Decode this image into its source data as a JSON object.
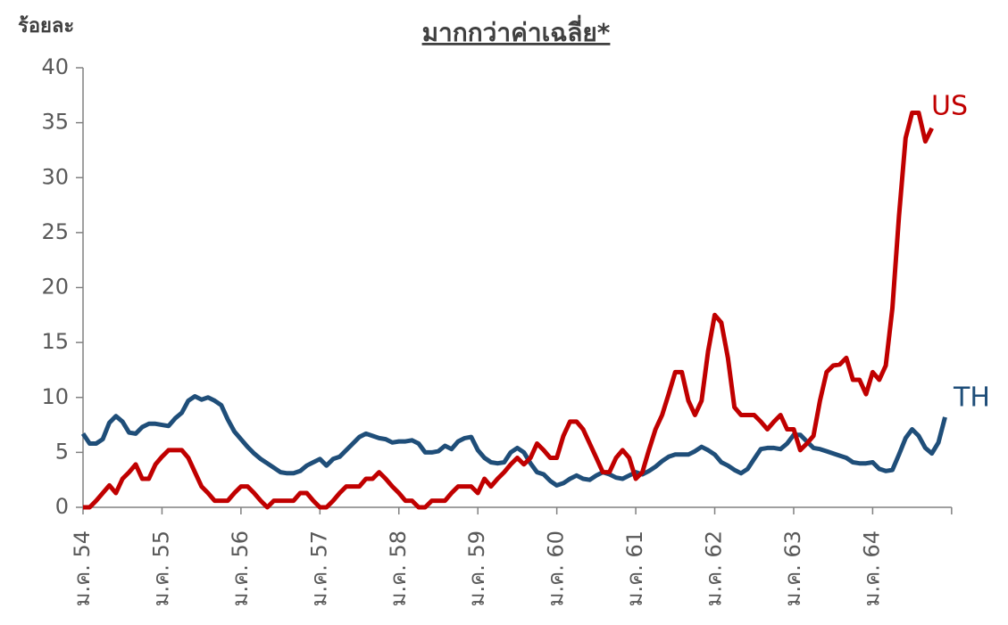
{
  "chart_data": {
    "type": "line",
    "title": "มากกว่าค่าเฉลี่ย*",
    "y_label": "ร้อยละ",
    "categories": [
      "ม.ค. 54",
      null,
      null,
      null,
      null,
      null,
      null,
      null,
      null,
      null,
      null,
      null,
      "ม.ค. 55",
      null,
      null,
      null,
      null,
      null,
      null,
      null,
      null,
      null,
      null,
      null,
      "ม.ค. 56",
      null,
      null,
      null,
      null,
      null,
      null,
      null,
      null,
      null,
      null,
      null,
      "ม.ค. 57",
      null,
      null,
      null,
      null,
      null,
      null,
      null,
      null,
      null,
      null,
      null,
      "ม.ค. 58",
      null,
      null,
      null,
      null,
      null,
      null,
      null,
      null,
      null,
      null,
      null,
      "ม.ค. 59",
      null,
      null,
      null,
      null,
      null,
      null,
      null,
      null,
      null,
      null,
      null,
      "ม.ค. 60",
      null,
      null,
      null,
      null,
      null,
      null,
      null,
      null,
      null,
      null,
      null,
      "ม.ค. 61",
      null,
      null,
      null,
      null,
      null,
      null,
      null,
      null,
      null,
      null,
      null,
      "ม.ค. 62",
      null,
      null,
      null,
      null,
      null,
      null,
      null,
      null,
      null,
      null,
      null,
      "ม.ค. 63",
      null,
      null,
      null,
      null,
      null,
      null,
      null,
      null,
      null,
      null,
      null,
      "ม.ค. 64",
      null,
      null,
      null,
      null,
      null,
      null,
      null,
      null,
      null,
      null,
      null
    ],
    "series": [
      {
        "name": "TH",
        "color": "#1f4e79",
        "values": [
          6.7,
          5.8,
          5.8,
          6.2,
          7.7,
          8.3,
          7.8,
          6.8,
          6.7,
          7.3,
          7.6,
          7.6,
          7.5,
          7.4,
          8.1,
          8.6,
          9.7,
          10.1,
          9.8,
          10.0,
          9.7,
          9.3,
          8.0,
          6.9,
          6.2,
          5.5,
          4.9,
          4.4,
          4.0,
          3.6,
          3.2,
          3.1,
          3.1,
          3.3,
          3.8,
          4.1,
          4.4,
          3.8,
          4.4,
          4.6,
          5.2,
          5.8,
          6.4,
          6.7,
          6.5,
          6.3,
          6.2,
          5.9,
          6.0,
          6.0,
          6.1,
          5.8,
          5.0,
          5.0,
          5.1,
          5.6,
          5.3,
          6.0,
          6.3,
          6.4,
          5.2,
          4.5,
          4.1,
          4.0,
          4.1,
          5.0,
          5.4,
          5.0,
          4.0,
          3.2,
          3.0,
          2.4,
          2.0,
          2.2,
          2.6,
          2.9,
          2.6,
          2.5,
          2.9,
          3.2,
          3.0,
          2.7,
          2.6,
          2.9,
          3.2,
          3.0,
          3.3,
          3.7,
          4.2,
          4.6,
          4.8,
          4.8,
          4.8,
          5.1,
          5.5,
          5.2,
          4.8,
          4.1,
          3.8,
          3.4,
          3.1,
          3.5,
          4.4,
          5.3,
          5.4,
          5.4,
          5.3,
          5.8,
          6.6,
          6.6,
          6.0,
          5.4,
          5.3,
          5.1,
          4.9,
          4.7,
          4.5,
          4.1,
          4.0,
          4.0,
          4.1,
          3.5,
          3.3,
          3.4,
          4.8,
          6.3,
          7.1,
          6.5,
          5.4,
          4.9,
          5.9,
          8.2
        ]
      },
      {
        "name": "US",
        "color": "#c00000",
        "values": [
          0,
          0,
          0.6,
          1.3,
          2.0,
          1.3,
          2.6,
          3.2,
          3.9,
          2.6,
          2.6,
          3.9,
          4.6,
          5.2,
          5.2,
          5.2,
          4.5,
          3.2,
          1.9,
          1.3,
          0.6,
          0.6,
          0.6,
          1.3,
          1.9,
          1.9,
          1.3,
          0.6,
          0,
          0.6,
          0.6,
          0.6,
          0.6,
          1.3,
          1.3,
          0.6,
          0,
          0,
          0.6,
          1.3,
          1.9,
          1.9,
          1.9,
          2.6,
          2.6,
          3.2,
          2.6,
          1.9,
          1.3,
          0.6,
          0.6,
          0,
          0,
          0.6,
          0.6,
          0.6,
          1.3,
          1.9,
          1.9,
          1.9,
          1.3,
          2.6,
          1.9,
          2.6,
          3.2,
          3.9,
          4.5,
          3.9,
          4.5,
          5.8,
          5.2,
          4.5,
          4.5,
          6.5,
          7.8,
          7.8,
          7.1,
          5.8,
          4.5,
          3.2,
          3.2,
          4.5,
          5.2,
          4.5,
          2.6,
          3.2,
          5.2,
          7.1,
          8.4,
          10.3,
          12.3,
          12.3,
          9.7,
          8.4,
          9.7,
          14.2,
          17.5,
          16.8,
          13.6,
          9.1,
          8.4,
          8.4,
          8.4,
          7.8,
          7.1,
          7.8,
          8.4,
          7.1,
          7.1,
          5.2,
          5.8,
          6.5,
          9.7,
          12.3,
          12.9,
          13.0,
          13.6,
          11.6,
          11.6,
          10.3,
          12.3,
          11.6,
          12.9,
          18.1,
          26.5,
          33.6,
          35.9,
          35.9,
          33.3,
          34.5,
          null,
          null
        ]
      }
    ],
    "ylim": [
      0,
      40
    ],
    "yticks": [
      0,
      5,
      10,
      15,
      20,
      25,
      30,
      35,
      40
    ]
  }
}
